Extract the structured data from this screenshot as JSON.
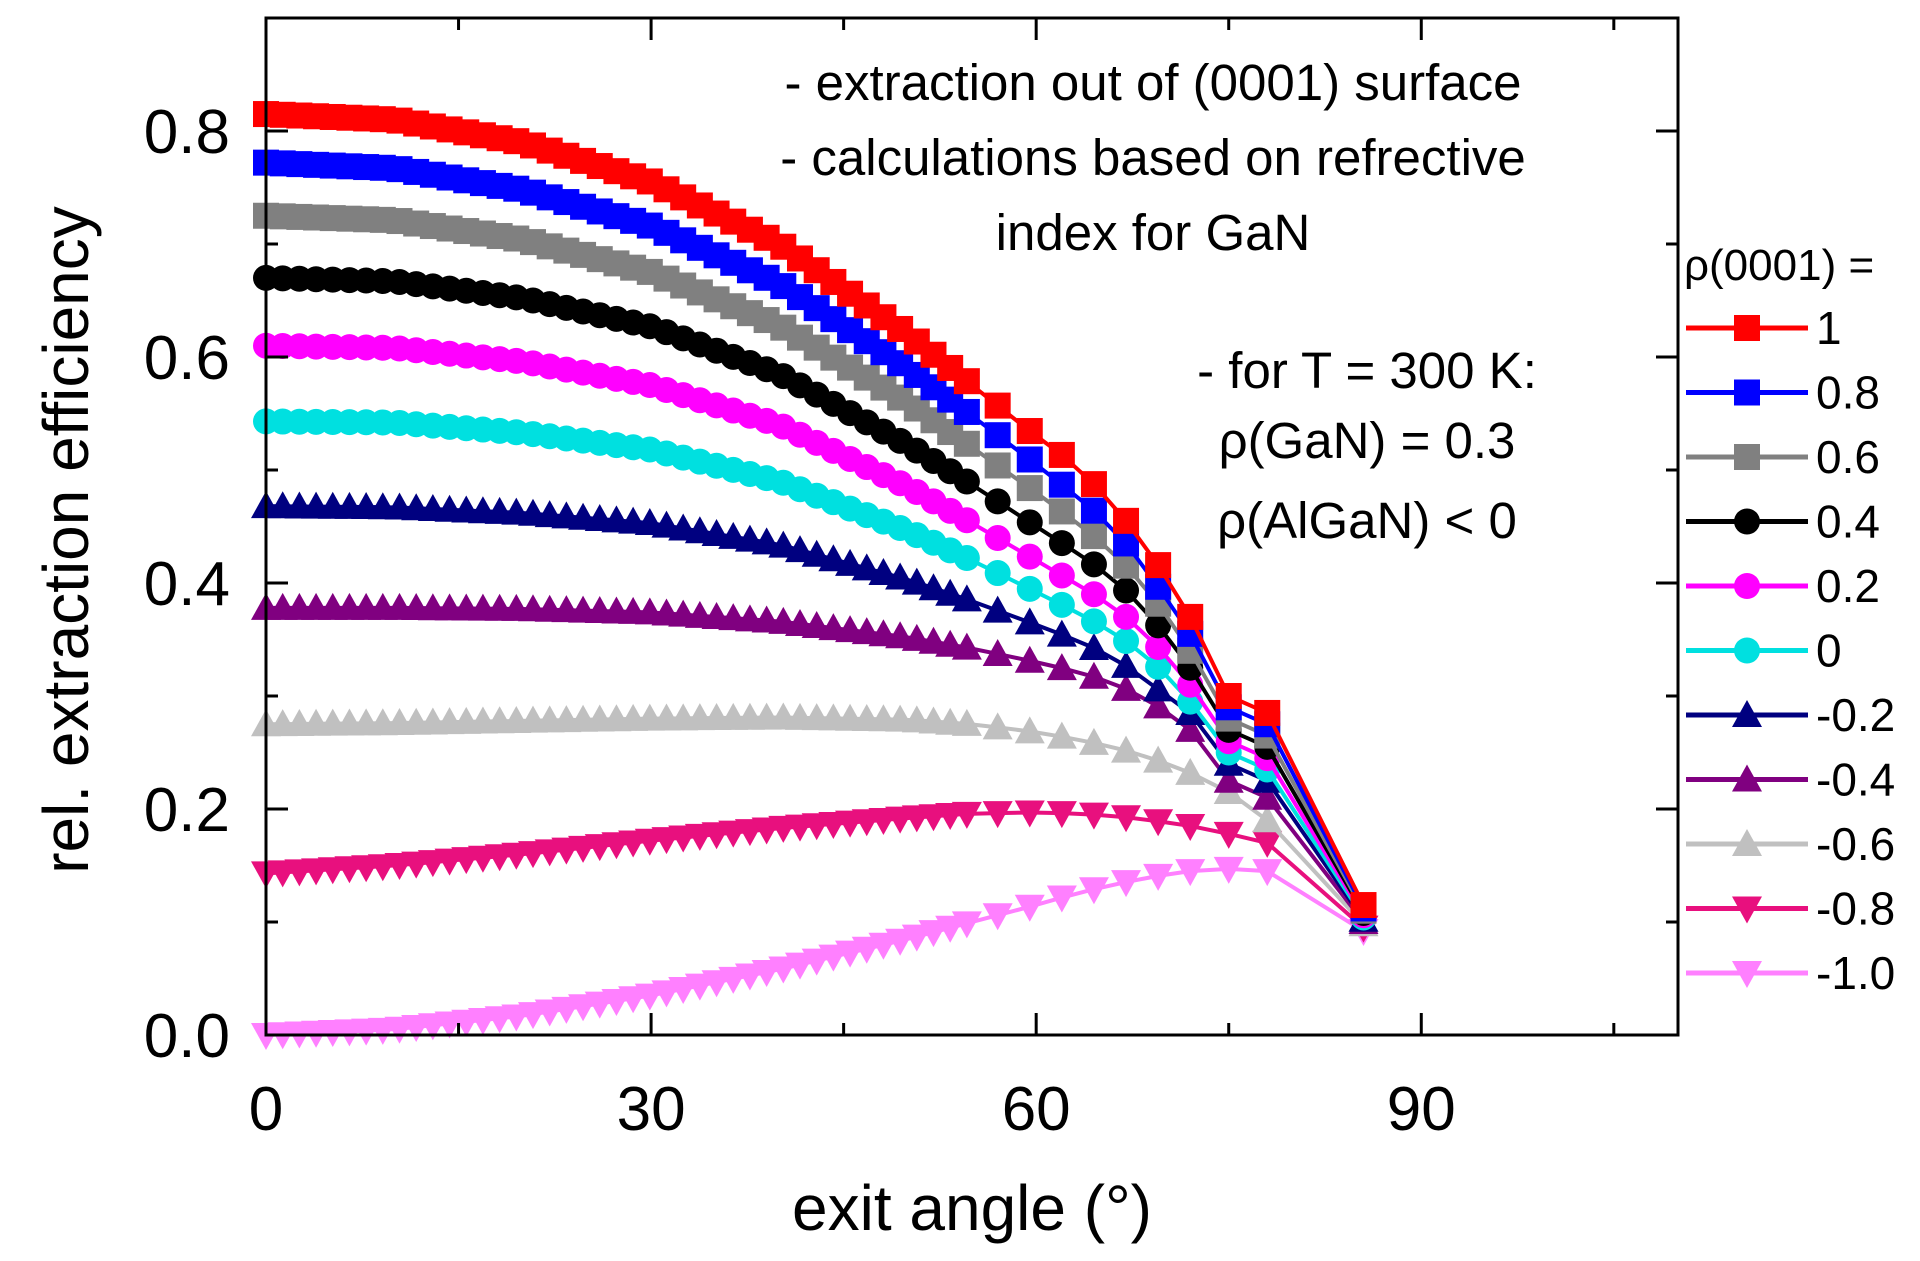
{
  "chart_data": {
    "type": "line",
    "title": "",
    "xlabel": "exit angle (°)",
    "ylabel": "rel. extraction efficiency",
    "xlim": [
      0,
      110
    ],
    "ylim": [
      0,
      0.9
    ],
    "xticks": [
      0,
      30,
      60,
      90
    ],
    "xtick_labels": [
      "0",
      "30",
      "60",
      "90"
    ],
    "yticks": [
      0,
      0.2,
      0.4,
      0.6,
      0.8
    ],
    "ytick_labels": [
      "0.0",
      "0.2",
      "0.4",
      "0.6",
      "0.8"
    ],
    "grid": false,
    "annotations": [
      "- extraction out of (0001) surface",
      "- calculations based on refrective",
      "index for GaN",
      "- for T = 300 K:",
      "ρ(GaN) = 0.3",
      "ρ(AlGaN) < 0"
    ],
    "legend": {
      "title": "ρ(0001) =",
      "position": "right, outside plot"
    },
    "series": [
      {
        "name": "1",
        "color": "#ff0000",
        "marker": "square",
        "y0": 0.815,
        "x": [
          0,
          10,
          20,
          30,
          40,
          50,
          55,
          60,
          63,
          66,
          69,
          72,
          75,
          78,
          85.5
        ],
        "y": [
          0.815,
          0.81,
          0.79,
          0.755,
          0.7,
          0.62,
          0.575,
          0.53,
          0.505,
          0.47,
          0.425,
          0.37,
          0.3,
          0.285,
          0.115
        ]
      },
      {
        "name": "0.8",
        "color": "#0000ff",
        "marker": "square",
        "y0": 0.772,
        "x": [
          0,
          10,
          20,
          30,
          40,
          50,
          55,
          60,
          63,
          66,
          69,
          72,
          75,
          78,
          85.5
        ],
        "y": [
          0.772,
          0.767,
          0.748,
          0.716,
          0.665,
          0.59,
          0.548,
          0.505,
          0.478,
          0.45,
          0.405,
          0.355,
          0.29,
          0.275,
          0.112
        ]
      },
      {
        "name": "0.6",
        "color": "#808080",
        "marker": "square",
        "y0": 0.725,
        "x": [
          0,
          10,
          20,
          30,
          40,
          50,
          55,
          60,
          63,
          66,
          69,
          72,
          75,
          78,
          85.5
        ],
        "y": [
          0.725,
          0.721,
          0.704,
          0.675,
          0.628,
          0.56,
          0.52,
          0.48,
          0.455,
          0.428,
          0.39,
          0.34,
          0.28,
          0.265,
          0.11
        ]
      },
      {
        "name": "0.4",
        "color": "#000000",
        "marker": "circle",
        "y0": 0.67,
        "x": [
          0,
          10,
          20,
          30,
          40,
          50,
          55,
          60,
          63,
          66,
          69,
          72,
          75,
          78,
          85.5
        ],
        "y": [
          0.67,
          0.667,
          0.652,
          0.627,
          0.585,
          0.522,
          0.487,
          0.45,
          0.428,
          0.405,
          0.37,
          0.325,
          0.27,
          0.255,
          0.108
        ]
      },
      {
        "name": "0.2",
        "color": "#ff00ff",
        "marker": "circle",
        "y0": 0.61,
        "x": [
          0,
          10,
          20,
          30,
          40,
          50,
          55,
          60,
          63,
          66,
          69,
          72,
          75,
          78,
          85.5
        ],
        "y": [
          0.61,
          0.608,
          0.596,
          0.575,
          0.54,
          0.485,
          0.453,
          0.42,
          0.4,
          0.38,
          0.35,
          0.31,
          0.26,
          0.245,
          0.106
        ]
      },
      {
        "name": "0",
        "color": "#00e0e0",
        "marker": "circle",
        "y0": 0.543,
        "x": [
          0,
          10,
          20,
          30,
          40,
          50,
          55,
          60,
          63,
          66,
          69,
          72,
          75,
          78,
          85.5
        ],
        "y": [
          0.543,
          0.542,
          0.533,
          0.518,
          0.49,
          0.446,
          0.42,
          0.392,
          0.375,
          0.357,
          0.332,
          0.295,
          0.25,
          0.235,
          0.104
        ]
      },
      {
        "name": "-0.2",
        "color": "#000080",
        "marker": "triangle-up",
        "y0": 0.468,
        "x": [
          0,
          10,
          20,
          30,
          40,
          50,
          55,
          60,
          63,
          66,
          69,
          72,
          75,
          78,
          85.5
        ],
        "y": [
          0.468,
          0.467,
          0.462,
          0.453,
          0.434,
          0.403,
          0.384,
          0.363,
          0.35,
          0.335,
          0.31,
          0.285,
          0.24,
          0.225,
          0.102
        ]
      },
      {
        "name": "-0.4",
        "color": "#800080",
        "marker": "triangle-up",
        "y0": 0.378,
        "x": [
          0,
          10,
          20,
          30,
          40,
          50,
          55,
          60,
          63,
          66,
          69,
          72,
          75,
          78,
          85.5
        ],
        "y": [
          0.378,
          0.378,
          0.377,
          0.374,
          0.366,
          0.352,
          0.342,
          0.33,
          0.322,
          0.312,
          0.295,
          0.27,
          0.225,
          0.21,
          0.1
        ]
      },
      {
        "name": "-0.6",
        "color": "#c0c0c0",
        "marker": "triangle-up",
        "y0": 0.275,
        "x": [
          0,
          10,
          20,
          30,
          40,
          50,
          55,
          60,
          63,
          66,
          69,
          72,
          75,
          78,
          85.5
        ],
        "y": [
          0.275,
          0.276,
          0.278,
          0.28,
          0.281,
          0.279,
          0.275,
          0.268,
          0.262,
          0.255,
          0.245,
          0.232,
          0.215,
          0.19,
          0.098
        ]
      },
      {
        "name": "-0.8",
        "color": "#e8107e",
        "marker": "triangle-down",
        "y0": 0.143,
        "x": [
          0,
          10,
          20,
          30,
          40,
          50,
          55,
          60,
          63,
          66,
          69,
          72,
          75,
          78,
          85.5
        ],
        "y": [
          0.143,
          0.15,
          0.16,
          0.172,
          0.183,
          0.192,
          0.196,
          0.197,
          0.196,
          0.194,
          0.19,
          0.185,
          0.178,
          0.17,
          0.095
        ]
      },
      {
        "name": "-1.0",
        "color": "#ff80ff",
        "marker": "triangle-down",
        "y0": 0.0,
        "x": [
          0,
          10,
          20,
          30,
          40,
          50,
          55,
          60,
          63,
          66,
          69,
          72,
          75,
          78,
          85.5
        ],
        "y": [
          0.0,
          0.005,
          0.017,
          0.035,
          0.058,
          0.085,
          0.1,
          0.115,
          0.125,
          0.133,
          0.14,
          0.145,
          0.147,
          0.145,
          0.092
        ]
      }
    ]
  }
}
